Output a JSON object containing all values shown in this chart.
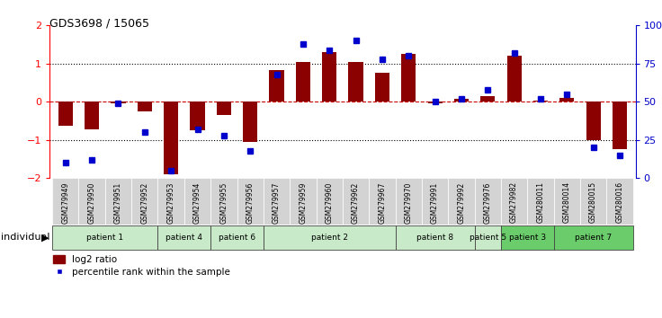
{
  "title": "GDS3698 / 15065",
  "samples": [
    "GSM279949",
    "GSM279950",
    "GSM279951",
    "GSM279952",
    "GSM279953",
    "GSM279954",
    "GSM279955",
    "GSM279956",
    "GSM279957",
    "GSM279959",
    "GSM279960",
    "GSM279962",
    "GSM279967",
    "GSM279970",
    "GSM279991",
    "GSM279992",
    "GSM279976",
    "GSM279982",
    "GSM280011",
    "GSM280014",
    "GSM280015",
    "GSM280016"
  ],
  "log2_ratio": [
    -0.62,
    -0.72,
    -0.05,
    -0.25,
    -1.9,
    -0.75,
    -0.35,
    -1.05,
    0.82,
    1.05,
    1.3,
    1.05,
    0.75,
    1.25,
    -0.05,
    0.08,
    0.15,
    1.2,
    0.02,
    0.1,
    -1.0,
    -1.25
  ],
  "percentile_rank": [
    10,
    12,
    49,
    30,
    5,
    32,
    28,
    18,
    68,
    88,
    84,
    90,
    78,
    80,
    50,
    52,
    58,
    82,
    52,
    55,
    20,
    15
  ],
  "patients": [
    {
      "label": "patient 1",
      "start": 0,
      "end": 4,
      "color": "#c8eac8"
    },
    {
      "label": "patient 4",
      "start": 4,
      "end": 6,
      "color": "#c8eac8"
    },
    {
      "label": "patient 6",
      "start": 6,
      "end": 8,
      "color": "#c8eac8"
    },
    {
      "label": "patient 2",
      "start": 8,
      "end": 13,
      "color": "#c8eac8"
    },
    {
      "label": "patient 8",
      "start": 13,
      "end": 16,
      "color": "#c8eac8"
    },
    {
      "label": "patient 5",
      "start": 16,
      "end": 17,
      "color": "#c8eac8"
    },
    {
      "label": "patient 3",
      "start": 17,
      "end": 19,
      "color": "#6bcc6b"
    },
    {
      "label": "patient 7",
      "start": 19,
      "end": 22,
      "color": "#6bcc6b"
    }
  ],
  "bar_color": "#8B0000",
  "dot_color": "#0000CD",
  "zero_line_color": "#CC0000",
  "ylim_left": [
    -2,
    2
  ],
  "ylim_right": [
    0,
    100
  ],
  "yticks_left": [
    -2,
    -1,
    0,
    1,
    2
  ],
  "yticks_right": [
    0,
    25,
    50,
    75,
    100
  ],
  "yticklabels_right": [
    "0",
    "25",
    "50",
    "75",
    "100%"
  ],
  "legend_bar_label": "log2 ratio",
  "legend_dot_label": "percentile rank within the sample",
  "individual_label": "individual"
}
